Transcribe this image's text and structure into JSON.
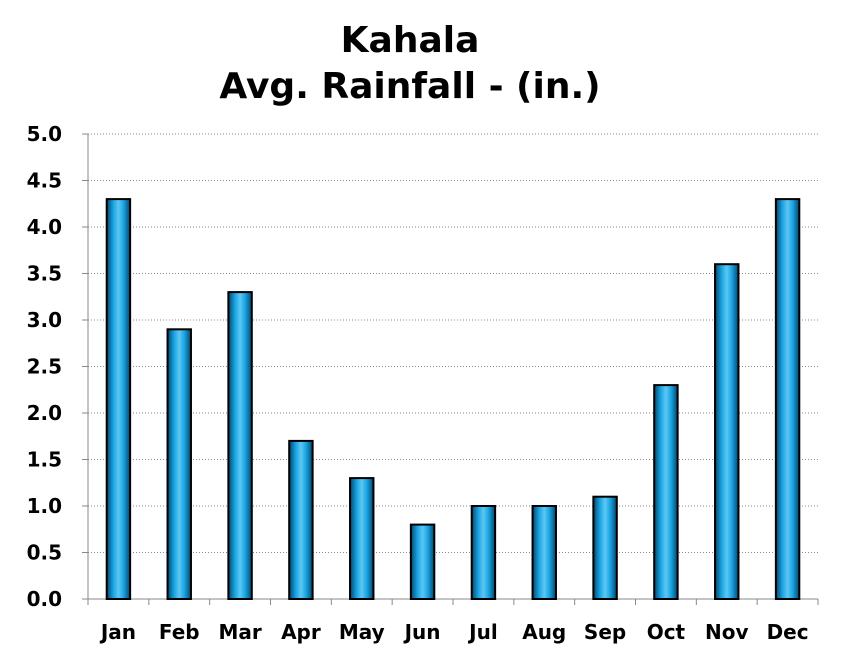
{
  "chart_data": {
    "type": "bar",
    "title": "Kahala",
    "subtitle": "Avg. Rainfall - (in.)",
    "categories": [
      "Jan",
      "Feb",
      "Mar",
      "Apr",
      "May",
      "Jun",
      "Jul",
      "Aug",
      "Sep",
      "Oct",
      "Nov",
      "Dec"
    ],
    "values": [
      4.3,
      2.9,
      3.3,
      1.7,
      1.3,
      0.8,
      1.0,
      1.0,
      1.1,
      2.3,
      3.6,
      4.3
    ],
    "ylim": [
      0,
      5
    ],
    "yticks": [
      "0.0",
      "0.5",
      "1.0",
      "1.5",
      "2.0",
      "2.5",
      "3.0",
      "3.5",
      "4.0",
      "4.5",
      "5.0"
    ],
    "grid": true,
    "bar_color": "#0a8ccc"
  }
}
